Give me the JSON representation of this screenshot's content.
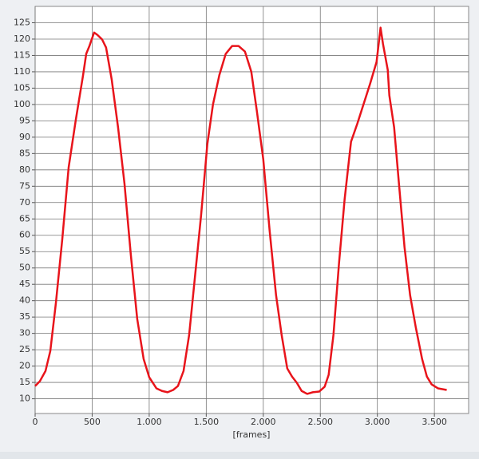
{
  "chart_data": {
    "type": "line",
    "x_label": "[frames]",
    "xlim": [
      0,
      3800
    ],
    "ylim": [
      5.5,
      130
    ],
    "xticks": [
      0,
      500,
      {
        "value": 1000,
        "label": "1.000"
      },
      {
        "value": 1500,
        "label": "1.500"
      },
      {
        "value": 2000,
        "label": "2.000"
      },
      {
        "value": 2500,
        "label": "2.500"
      },
      {
        "value": 3000,
        "label": "3.000"
      },
      {
        "value": 3500,
        "label": "3.500"
      }
    ],
    "yticks": [
      10,
      15,
      20,
      25,
      30,
      35,
      40,
      45,
      50,
      55,
      60,
      65,
      70,
      75,
      80,
      85,
      90,
      95,
      100,
      105,
      110,
      115,
      120,
      125
    ],
    "grid": true,
    "series": [
      {
        "color": "#e8141b",
        "x": [
          0,
          42,
          91,
          133,
          182,
          238,
          294,
          357,
          420,
          448,
          476,
          517,
          545,
          587,
          622,
          671,
          727,
          783,
          839,
          895,
          951,
          1000,
          1063,
          1112,
          1161,
          1210,
          1252,
          1301,
          1350,
          1406,
          1455,
          1510,
          1559,
          1615,
          1671,
          1727,
          1783,
          1839,
          1895,
          1944,
          2000,
          2056,
          2112,
          2161,
          2210,
          2252,
          2294,
          2336,
          2385,
          2434,
          2490,
          2538,
          2573,
          2615,
          2664,
          2713,
          2748,
          2769,
          2825,
          2881,
          2937,
          2993,
          3028,
          3049,
          3091,
          3105,
          3147,
          3189,
          3238,
          3287,
          3336,
          3392,
          3434,
          3476,
          3531,
          3608
        ],
        "values": [
          13.9,
          15.4,
          18.5,
          24.6,
          39.3,
          58.8,
          80.8,
          95.4,
          108.9,
          115.5,
          117.9,
          122,
          121.3,
          119.9,
          117.4,
          107.7,
          93,
          75.9,
          54,
          34.4,
          22.2,
          16.6,
          13.2,
          12.4,
          12,
          12.7,
          13.9,
          18.5,
          29.5,
          49,
          66.2,
          88,
          100,
          109,
          115.5,
          117.9,
          117.9,
          116.2,
          110,
          97.9,
          83.2,
          61.3,
          41.7,
          29.5,
          19.3,
          16.8,
          14.9,
          12.4,
          11.5,
          12,
          12.2,
          13.7,
          17.3,
          29.5,
          51.5,
          71,
          82,
          88.6,
          94.2,
          100.3,
          106.4,
          113,
          123.5,
          118.6,
          110.6,
          102.8,
          93,
          75.9,
          56.4,
          41.7,
          32,
          22.2,
          16.8,
          14.4,
          13.2,
          12.7
        ]
      }
    ]
  }
}
